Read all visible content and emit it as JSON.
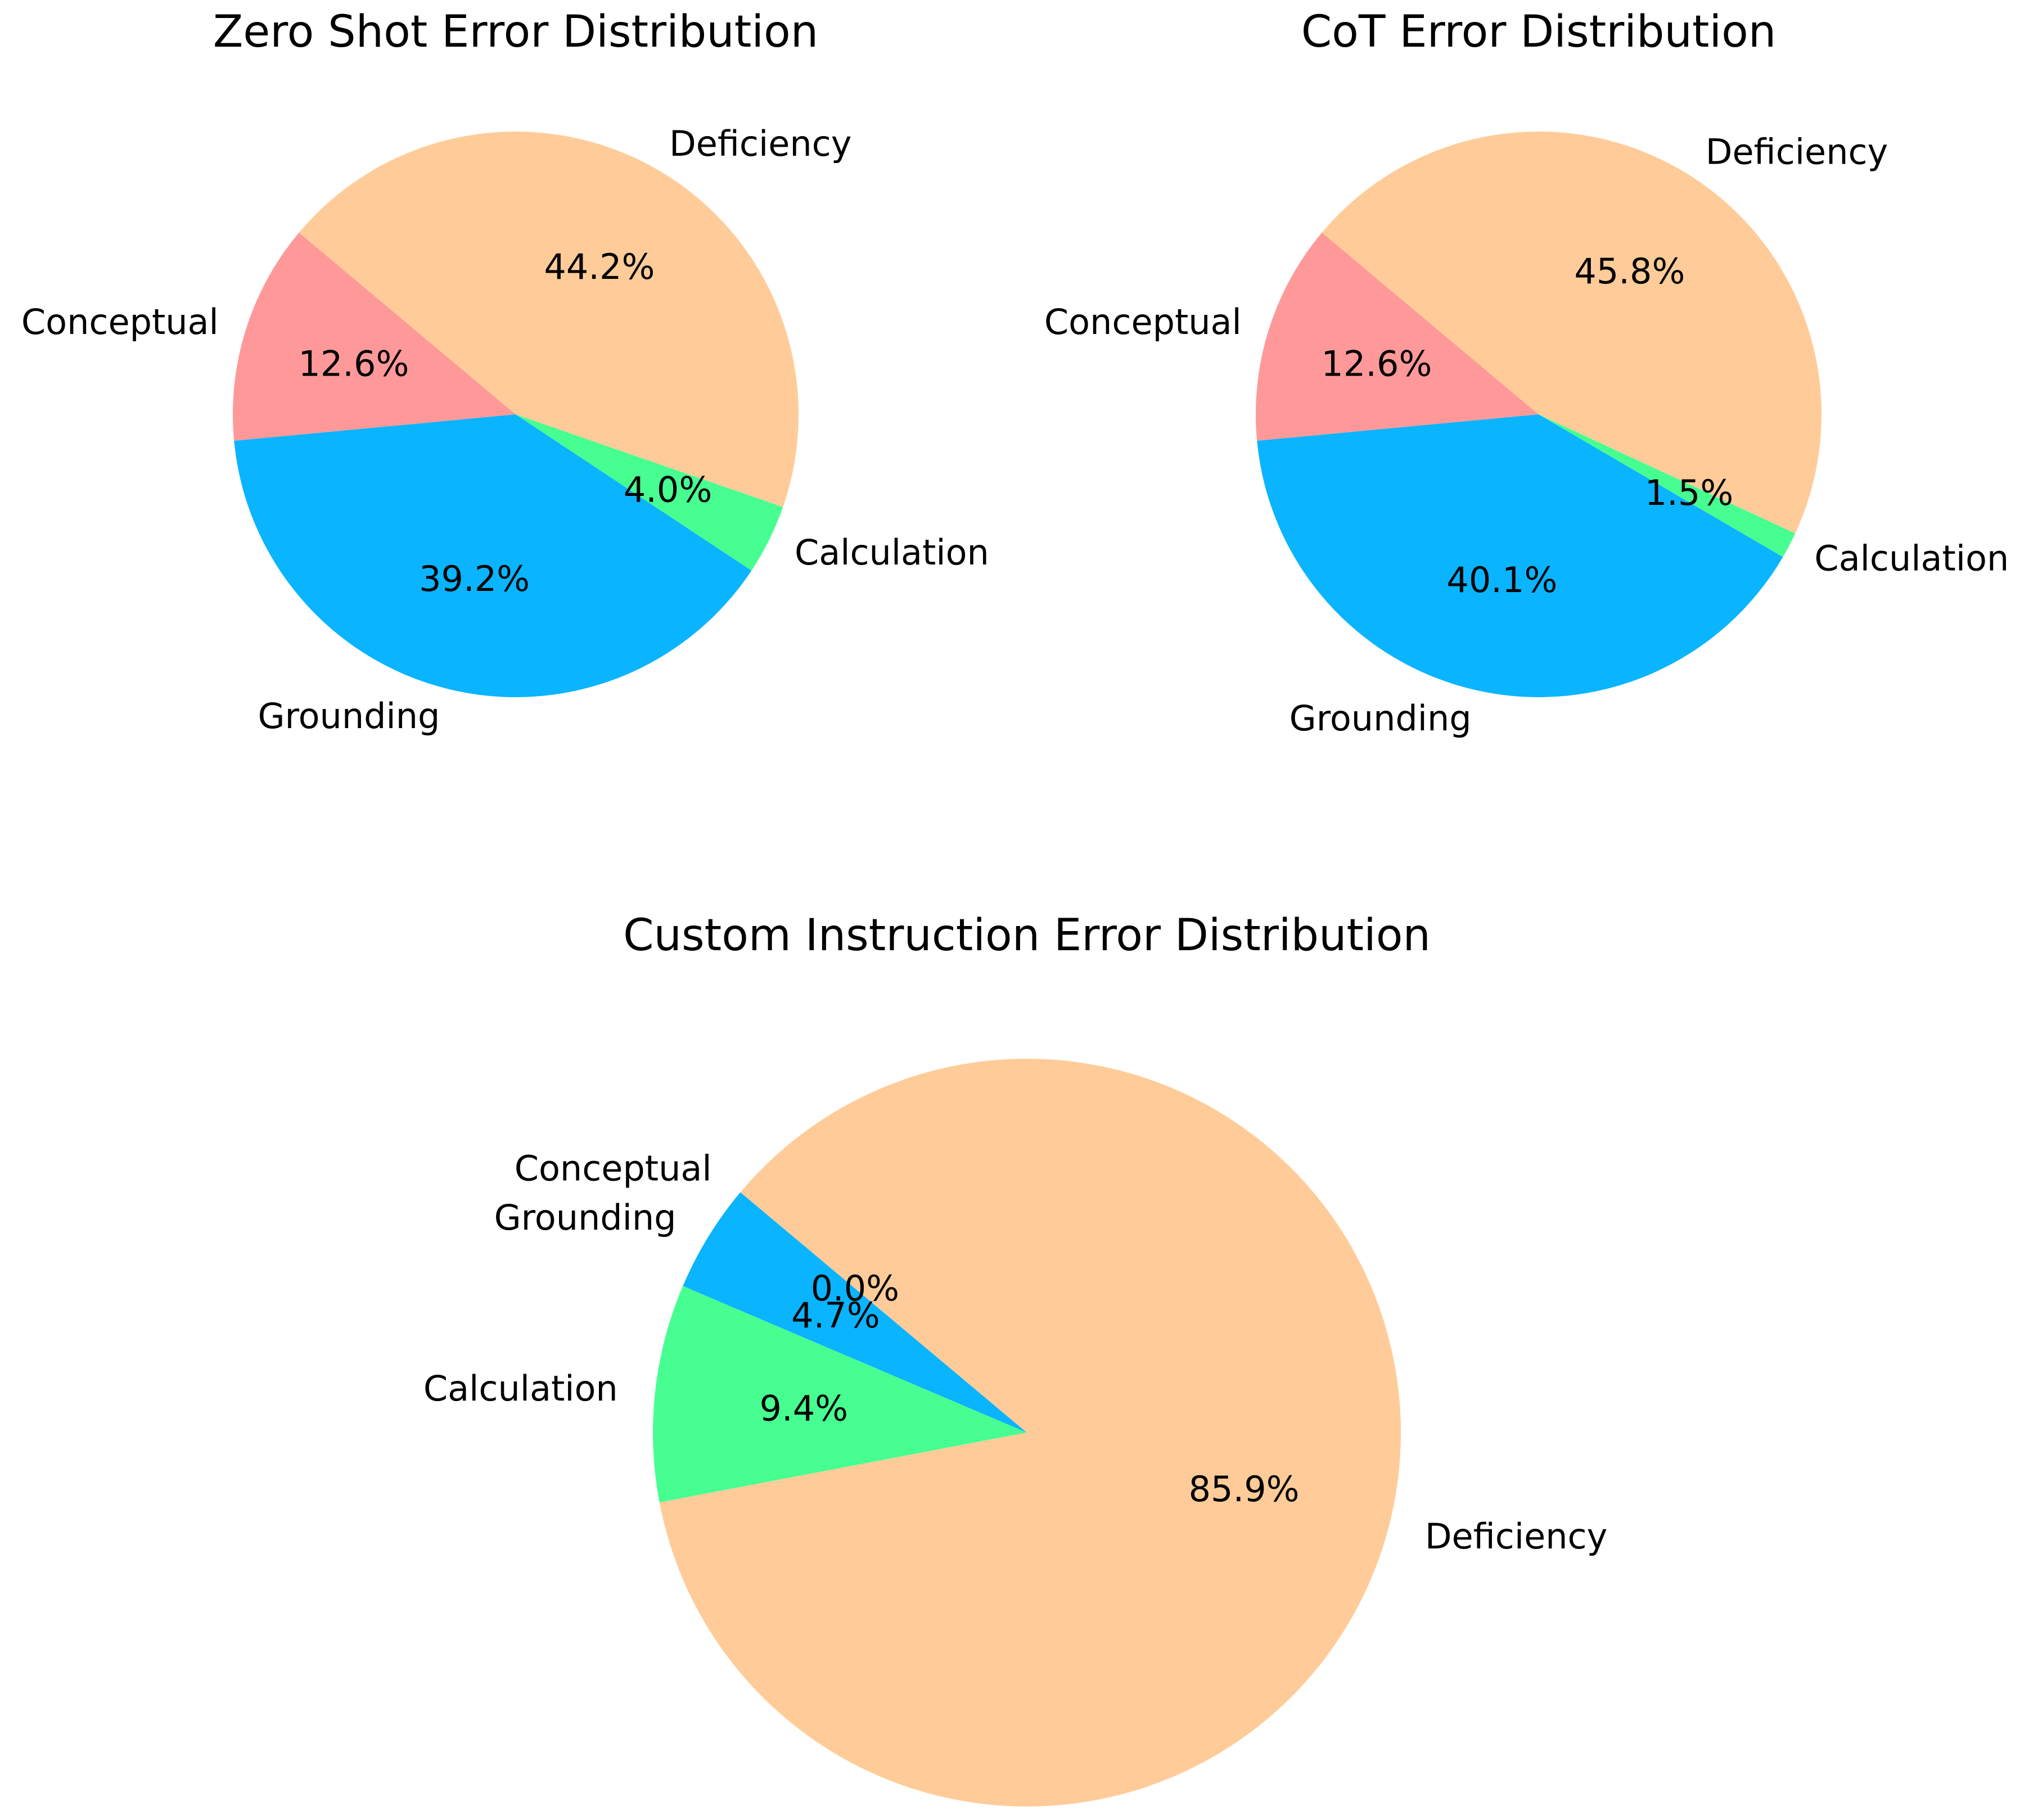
{
  "chart_data": [
    {
      "type": "pie",
      "title": "Zero Shot Error Distribution",
      "categories": [
        "Conceptual",
        "Grounding",
        "Calculation",
        "Deficiency"
      ],
      "values": [
        12.6,
        39.2,
        4.0,
        44.2
      ],
      "value_labels": [
        "12.6%",
        "39.2%",
        "4.0%",
        "44.2%"
      ],
      "colors": [
        "#FF9999",
        "#0AB4FF",
        "#47FF91",
        "#FFCC99"
      ],
      "start_angle_deg": 140,
      "direction": "counterclockwise"
    },
    {
      "type": "pie",
      "title": "CoT Error Distribution",
      "categories": [
        "Conceptual",
        "Grounding",
        "Calculation",
        "Deficiency"
      ],
      "values": [
        12.6,
        40.1,
        1.5,
        45.8
      ],
      "value_labels": [
        "12.6%",
        "40.1%",
        "1.5%",
        "45.8%"
      ],
      "colors": [
        "#FF9999",
        "#0AB4FF",
        "#47FF91",
        "#FFCC99"
      ],
      "start_angle_deg": 140,
      "direction": "counterclockwise"
    },
    {
      "type": "pie",
      "title": "Custom Instruction Error Distribution",
      "categories": [
        "Conceptual",
        "Grounding",
        "Calculation",
        "Deficiency"
      ],
      "values": [
        0.0,
        4.7,
        9.4,
        85.9
      ],
      "value_labels": [
        "0.0%",
        "4.7%",
        "9.4%",
        "85.9%"
      ],
      "colors": [
        "#FF9999",
        "#0AB4FF",
        "#47FF91",
        "#FFCC99"
      ],
      "start_angle_deg": 140,
      "direction": "counterclockwise"
    }
  ]
}
